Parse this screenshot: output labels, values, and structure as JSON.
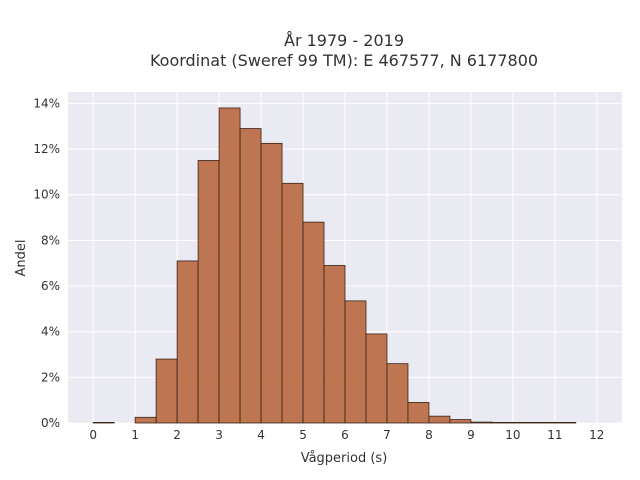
{
  "chart_data": {
    "type": "bar",
    "title": [
      "År 1979 - 2019",
      "Koordinat (Sweref 99 TM): E 467577, N 6177800"
    ],
    "xlabel": "Vågperiod (s)",
    "ylabel": "Andel",
    "xlim": [
      -0.6,
      12.6
    ],
    "ylim": [
      0,
      14.5
    ],
    "bin_width": 0.5,
    "x_ticks": [
      0,
      1,
      2,
      3,
      4,
      5,
      6,
      7,
      8,
      9,
      10,
      11,
      12
    ],
    "y_ticks": [
      0,
      2,
      4,
      6,
      8,
      10,
      12,
      14
    ],
    "y_tick_labels": [
      "0%",
      "2%",
      "4%",
      "6%",
      "8%",
      "10%",
      "12%",
      "14%"
    ],
    "bins": [
      {
        "x0": 0.0,
        "value": 0.02
      },
      {
        "x0": 1.0,
        "value": 0.25
      },
      {
        "x0": 1.5,
        "value": 2.8
      },
      {
        "x0": 2.0,
        "value": 7.1
      },
      {
        "x0": 2.5,
        "value": 11.5
      },
      {
        "x0": 3.0,
        "value": 13.8
      },
      {
        "x0": 3.5,
        "value": 12.9
      },
      {
        "x0": 4.0,
        "value": 12.25
      },
      {
        "x0": 4.5,
        "value": 10.5
      },
      {
        "x0": 5.0,
        "value": 8.8
      },
      {
        "x0": 5.5,
        "value": 6.9
      },
      {
        "x0": 6.0,
        "value": 5.35
      },
      {
        "x0": 6.5,
        "value": 3.9
      },
      {
        "x0": 7.0,
        "value": 2.6
      },
      {
        "x0": 7.5,
        "value": 0.9
      },
      {
        "x0": 8.0,
        "value": 0.3
      },
      {
        "x0": 8.5,
        "value": 0.15
      },
      {
        "x0": 9.0,
        "value": 0.04
      },
      {
        "x0": 9.5,
        "value": 0.02
      },
      {
        "x0": 10.0,
        "value": 0.01
      },
      {
        "x0": 10.5,
        "value": 0.01
      },
      {
        "x0": 11.0,
        "value": 0.01
      }
    ],
    "grid": true,
    "colors": {
      "bar": "#b9683f",
      "background": "#eaeaf2",
      "edge": "#3a2416"
    }
  }
}
